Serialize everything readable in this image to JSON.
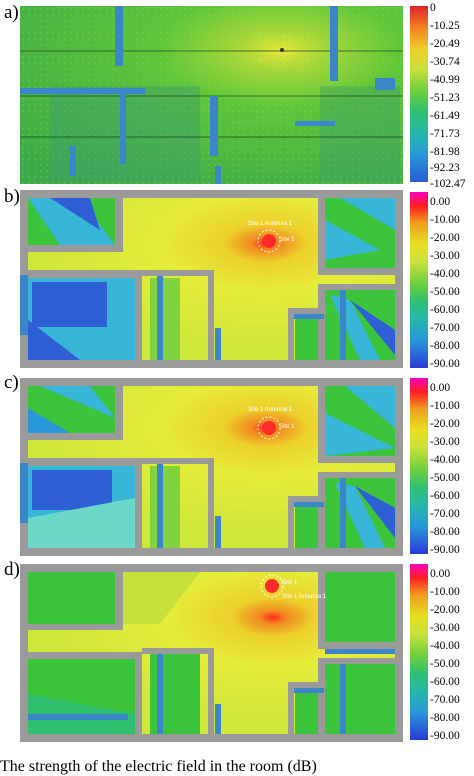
{
  "panels": [
    {
      "label": "a)",
      "colorbar_ticks": [
        "0",
        "-10.25",
        "-20.49",
        "-30.74",
        "-40.99",
        "-51.23",
        "-61.49",
        "-71.73",
        "-81.98",
        "-92.23",
        "-102.47"
      ]
    },
    {
      "label": "b)",
      "site_label": "Site 1 Antenna 1",
      "site_label_2": "Site 1",
      "colorbar_ticks": [
        "0.00",
        "-10.00",
        "-20.00",
        "-30.00",
        "-40.00",
        "-50.00",
        "-60.00",
        "-70.00",
        "-80.00",
        "-90.00"
      ]
    },
    {
      "label": "c)",
      "site_label": "Site 1 Antenna 1",
      "site_label_2": "Site 1",
      "colorbar_ticks": [
        "0.00",
        "-10.00",
        "-20.00",
        "-30.00",
        "-40.00",
        "-50.00",
        "-60.00",
        "-70.00",
        "-80.00",
        "-90.00"
      ]
    },
    {
      "label": "d)",
      "site_label": "Site 1 Antenna 1",
      "site_label_2": "Site 1",
      "colorbar_ticks": [
        "0.00",
        "-10.00",
        "-20.00",
        "-30.00",
        "-40.00",
        "-50.00",
        "-60.00",
        "-70.00",
        "-80.00",
        "-90.00"
      ]
    }
  ],
  "caption": "The strength of the electric field in the room (dB)",
  "colors": {
    "wall": "#9a9a9a",
    "wall_blue": "#3a86c8",
    "field_green": "#3cc43c",
    "field_yellow": "#e6ec3a",
    "field_cyan": "#38b6d8",
    "field_blue": "#2f5fd4"
  }
}
